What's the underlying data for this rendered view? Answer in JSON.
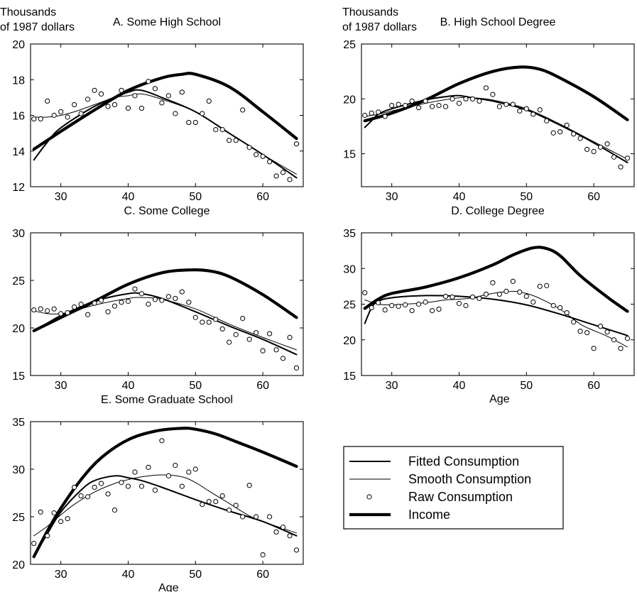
{
  "ylabel": [
    "Thousands",
    "of 1987 dollars"
  ],
  "legend": {
    "items": [
      {
        "label": "Fitted Consumption",
        "style": "fitted"
      },
      {
        "label": "Smooth Consumption",
        "style": "smooth"
      },
      {
        "label": "Raw Consumption",
        "style": "raw"
      },
      {
        "label": "Income",
        "style": "income"
      }
    ]
  },
  "chart_data": [
    {
      "type": "line",
      "title": "A. Some High School",
      "xlabel": "",
      "ylabel": "Thousands of 1987 dollars",
      "xlim": [
        25.5,
        66
      ],
      "ylim": [
        12,
        20
      ],
      "xticks": [
        30,
        40,
        50,
        60
      ],
      "yticks": [
        12,
        14,
        16,
        18,
        20
      ],
      "series": [
        {
          "name": "Income",
          "style": "income",
          "x": [
            26,
            30,
            35,
            40,
            45,
            48,
            50,
            55,
            60,
            65
          ],
          "y": [
            14.1,
            15.1,
            16.3,
            17.4,
            18.1,
            18.3,
            18.3,
            17.6,
            16.2,
            14.7
          ]
        },
        {
          "name": "Fitted Consumption",
          "style": "fitted",
          "x": [
            26,
            28,
            30,
            35,
            40,
            42,
            45,
            50,
            55,
            60,
            65
          ],
          "y": [
            13.5,
            14.5,
            15.3,
            16.5,
            17.3,
            17.4,
            17.0,
            16.2,
            15.0,
            13.8,
            12.5
          ]
        },
        {
          "name": "Smooth Consumption",
          "style": "smooth",
          "x": [
            26,
            28,
            30,
            32,
            35,
            38,
            40,
            42,
            45,
            50,
            55,
            60,
            65
          ],
          "y": [
            15.9,
            15.9,
            16.0,
            16.2,
            16.6,
            17.0,
            17.1,
            17.2,
            16.9,
            16.2,
            15.0,
            13.8,
            12.7
          ]
        },
        {
          "name": "Raw Consumption",
          "style": "raw",
          "x": [
            26,
            27,
            28,
            29,
            30,
            31,
            32,
            33,
            34,
            35,
            36,
            37,
            38,
            39,
            40,
            41,
            42,
            43,
            44,
            45,
            46,
            47,
            48,
            49,
            50,
            51,
            52,
            53,
            54,
            55,
            56,
            57,
            58,
            59,
            60,
            61,
            62,
            63,
            64,
            65
          ],
          "y": [
            15.8,
            15.8,
            16.8,
            16.0,
            16.2,
            15.9,
            16.6,
            16.1,
            16.9,
            17.4,
            17.2,
            16.5,
            16.6,
            17.4,
            16.4,
            17.1,
            16.4,
            17.9,
            17.5,
            16.7,
            17.1,
            16.1,
            17.3,
            15.6,
            15.6,
            16.1,
            16.8,
            15.2,
            15.2,
            14.6,
            14.6,
            16.3,
            14.2,
            13.8,
            13.7,
            13.4,
            12.6,
            12.8,
            12.4,
            14.4
          ]
        }
      ]
    },
    {
      "type": "line",
      "title": "B. High School Degree",
      "xlabel": "",
      "ylabel": "Thousands of 1987 dollars",
      "xlim": [
        25.5,
        66
      ],
      "ylim": [
        12,
        25
      ],
      "xticks": [
        30,
        40,
        50,
        60
      ],
      "yticks": [
        15,
        20,
        25
      ],
      "series": [
        {
          "name": "Income",
          "style": "income",
          "x": [
            26,
            30,
            35,
            40,
            45,
            49,
            52,
            55,
            60,
            65
          ],
          "y": [
            18.0,
            18.7,
            19.9,
            21.4,
            22.5,
            22.9,
            22.7,
            21.9,
            20.2,
            18.1
          ]
        },
        {
          "name": "Fitted Consumption",
          "style": "fitted",
          "x": [
            26,
            27,
            28,
            30,
            35,
            38,
            40,
            42,
            45,
            50,
            55,
            60,
            65
          ],
          "y": [
            17.4,
            18.0,
            18.6,
            19.1,
            19.9,
            20.2,
            20.3,
            20.1,
            19.8,
            19.0,
            17.6,
            16.0,
            14.2
          ]
        },
        {
          "name": "Smooth Consumption",
          "style": "smooth",
          "x": [
            26,
            28,
            30,
            35,
            40,
            42,
            45,
            50,
            55,
            60,
            65
          ],
          "y": [
            18.4,
            18.6,
            18.9,
            19.6,
            20.1,
            20.1,
            19.9,
            19.1,
            17.7,
            16.1,
            14.5
          ]
        },
        {
          "name": "Raw Consumption",
          "style": "raw",
          "x": [
            26,
            27,
            28,
            29,
            30,
            31,
            32,
            33,
            34,
            35,
            36,
            37,
            38,
            39,
            40,
            41,
            42,
            43,
            44,
            45,
            46,
            47,
            48,
            49,
            50,
            51,
            52,
            53,
            54,
            55,
            56,
            57,
            58,
            59,
            60,
            61,
            62,
            63,
            64,
            65
          ],
          "y": [
            18.5,
            18.7,
            18.8,
            18.4,
            19.4,
            19.5,
            19.4,
            19.8,
            19.2,
            19.8,
            19.3,
            19.4,
            19.3,
            20.0,
            19.6,
            20.0,
            20.0,
            19.8,
            21.0,
            20.4,
            19.3,
            19.5,
            19.5,
            18.9,
            19.1,
            18.6,
            19.0,
            18.0,
            16.9,
            17.0,
            17.6,
            16.8,
            16.4,
            15.4,
            15.2,
            15.6,
            15.9,
            14.7,
            13.8,
            14.6
          ]
        }
      ]
    },
    {
      "type": "line",
      "title": "C. Some College",
      "xlabel": "",
      "ylabel": "",
      "xlim": [
        25.5,
        66
      ],
      "ylim": [
        15,
        30
      ],
      "xticks": [
        30,
        40,
        50,
        60
      ],
      "yticks": [
        15,
        20,
        25,
        30
      ],
      "series": [
        {
          "name": "Income",
          "style": "income",
          "x": [
            26,
            30,
            35,
            40,
            45,
            49,
            52,
            55,
            60,
            65
          ],
          "y": [
            19.7,
            21.1,
            22.8,
            24.6,
            25.8,
            26.1,
            26.0,
            25.4,
            23.5,
            21.1
          ]
        },
        {
          "name": "Fitted Consumption",
          "style": "fitted",
          "x": [
            26,
            28,
            30,
            35,
            40,
            42,
            45,
            50,
            55,
            60,
            65
          ],
          "y": [
            19.7,
            20.5,
            21.3,
            22.8,
            23.6,
            23.6,
            23.1,
            21.7,
            20.2,
            18.8,
            17.2
          ]
        },
        {
          "name": "Smooth Consumption",
          "style": "smooth",
          "x": [
            26,
            28,
            30,
            32,
            35,
            40,
            42,
            45,
            50,
            55,
            60,
            65
          ],
          "y": [
            21.8,
            21.5,
            21.5,
            21.8,
            22.4,
            23.1,
            23.2,
            23.0,
            22.0,
            20.4,
            19.0,
            17.7
          ]
        },
        {
          "name": "Raw Consumption",
          "style": "raw",
          "x": [
            26,
            27,
            28,
            29,
            30,
            31,
            32,
            33,
            34,
            35,
            36,
            37,
            38,
            39,
            40,
            41,
            42,
            43,
            44,
            45,
            46,
            47,
            48,
            49,
            50,
            51,
            52,
            53,
            54,
            55,
            56,
            57,
            58,
            59,
            60,
            61,
            62,
            63,
            64,
            65
          ],
          "y": [
            21.9,
            22.0,
            21.8,
            22.0,
            21.5,
            21.6,
            22.2,
            22.5,
            21.4,
            22.6,
            22.9,
            21.7,
            22.3,
            22.7,
            22.8,
            24.1,
            23.6,
            22.5,
            23.0,
            22.9,
            23.3,
            23.1,
            23.8,
            22.7,
            21.1,
            20.6,
            20.6,
            20.9,
            19.9,
            18.5,
            19.3,
            21.0,
            18.8,
            19.5,
            17.6,
            19.4,
            17.7,
            16.8,
            19.0,
            15.8
          ]
        }
      ]
    },
    {
      "type": "line",
      "title": "D. College Degree",
      "xlabel": "Age",
      "ylabel": "",
      "xlim": [
        25.5,
        66
      ],
      "ylim": [
        15,
        35
      ],
      "xticks": [
        30,
        40,
        50,
        60
      ],
      "yticks": [
        15,
        20,
        25,
        30,
        35
      ],
      "series": [
        {
          "name": "Income",
          "style": "income",
          "x": [
            26,
            28,
            30,
            35,
            40,
            45,
            48,
            51,
            53,
            55,
            58,
            62,
            65
          ],
          "y": [
            24.4,
            25.7,
            26.5,
            27.4,
            28.7,
            30.5,
            31.9,
            32.9,
            32.8,
            31.8,
            29.0,
            26.0,
            24.0
          ]
        },
        {
          "name": "Fitted Consumption",
          "style": "fitted",
          "x": [
            26,
            27,
            28,
            30,
            35,
            40,
            45,
            50,
            55,
            60,
            65
          ],
          "y": [
            22.3,
            24.5,
            25.4,
            25.9,
            26.2,
            26.1,
            25.7,
            24.9,
            23.6,
            22.1,
            20.6
          ]
        },
        {
          "name": "Smooth Consumption",
          "style": "smooth",
          "x": [
            26,
            28,
            30,
            32,
            35,
            38,
            40,
            42,
            45,
            48,
            50,
            52,
            55,
            58,
            60,
            62,
            65
          ],
          "y": [
            25.6,
            25.0,
            24.9,
            25.0,
            25.2,
            25.6,
            25.7,
            25.9,
            26.5,
            26.8,
            26.5,
            25.8,
            24.3,
            22.2,
            21.3,
            20.5,
            19.0
          ]
        },
        {
          "name": "Raw Consumption",
          "style": "raw",
          "x": [
            26,
            27,
            28,
            29,
            30,
            31,
            32,
            33,
            34,
            35,
            36,
            37,
            38,
            39,
            40,
            41,
            42,
            43,
            44,
            45,
            46,
            47,
            48,
            49,
            50,
            51,
            52,
            53,
            54,
            55,
            56,
            57,
            58,
            59,
            60,
            61,
            62,
            63,
            64,
            65
          ],
          "y": [
            26.6,
            24.5,
            25.2,
            24.2,
            24.8,
            24.7,
            24.9,
            24.1,
            25.0,
            25.3,
            24.1,
            24.3,
            26.1,
            26.0,
            25.1,
            24.8,
            26.0,
            25.8,
            26.4,
            28.0,
            26.4,
            26.8,
            28.2,
            26.7,
            26.1,
            25.3,
            27.5,
            27.6,
            24.8,
            24.5,
            23.8,
            22.5,
            21.2,
            21.0,
            18.8,
            21.9,
            21.1,
            20.0,
            18.8,
            20.2
          ]
        }
      ]
    },
    {
      "type": "line",
      "title": "E. Some Graduate School",
      "xlabel": "Age",
      "ylabel": "",
      "xlim": [
        25.5,
        66
      ],
      "ylim": [
        20,
        35
      ],
      "xticks": [
        30,
        40,
        50,
        60
      ],
      "yticks": [
        20,
        25,
        30,
        35
      ],
      "series": [
        {
          "name": "Income",
          "style": "income",
          "x": [
            26,
            28,
            30,
            33,
            36,
            40,
            44,
            48,
            50,
            53,
            56,
            60,
            65
          ],
          "y": [
            20.8,
            23.5,
            25.9,
            28.9,
            31.2,
            33.1,
            34.0,
            34.3,
            34.2,
            33.7,
            32.9,
            31.8,
            30.3
          ]
        },
        {
          "name": "Fitted Consumption",
          "style": "fitted",
          "x": [
            26,
            28,
            30,
            33,
            35,
            38,
            40,
            42,
            45,
            50,
            55,
            60,
            65
          ],
          "y": [
            20.9,
            23.2,
            25.5,
            27.8,
            28.8,
            29.3,
            29.1,
            28.8,
            28.1,
            26.8,
            25.6,
            24.5,
            23.0
          ]
        },
        {
          "name": "Smooth Consumption",
          "style": "smooth",
          "x": [
            26,
            28,
            30,
            32,
            35,
            38,
            40,
            42,
            45,
            48,
            50,
            52,
            55,
            58,
            60,
            62,
            65
          ],
          "y": [
            23.0,
            24.0,
            25.2,
            26.3,
            27.6,
            28.5,
            28.9,
            29.2,
            29.4,
            29.2,
            28.6,
            27.7,
            26.4,
            25.1,
            24.5,
            24.0,
            23.3
          ]
        },
        {
          "name": "Raw Consumption",
          "style": "raw",
          "x": [
            26,
            27,
            28,
            29,
            30,
            31,
            32,
            33,
            34,
            35,
            36,
            37,
            38,
            39,
            40,
            41,
            42,
            43,
            44,
            45,
            46,
            47,
            48,
            49,
            50,
            51,
            52,
            53,
            54,
            55,
            56,
            57,
            58,
            59,
            60,
            61,
            62,
            63,
            64,
            65
          ],
          "y": [
            22.2,
            25.5,
            23.0,
            25.4,
            24.5,
            24.8,
            28.1,
            27.2,
            27.1,
            28.1,
            28.5,
            27.4,
            25.7,
            28.6,
            28.2,
            29.7,
            28.2,
            30.2,
            27.8,
            33.0,
            29.3,
            30.4,
            28.2,
            29.7,
            30.0,
            26.3,
            26.6,
            26.6,
            27.2,
            25.7,
            26.2,
            25.0,
            28.3,
            25.0,
            21.0,
            25.0,
            23.4,
            23.9,
            23.0,
            21.5
          ]
        }
      ]
    }
  ]
}
